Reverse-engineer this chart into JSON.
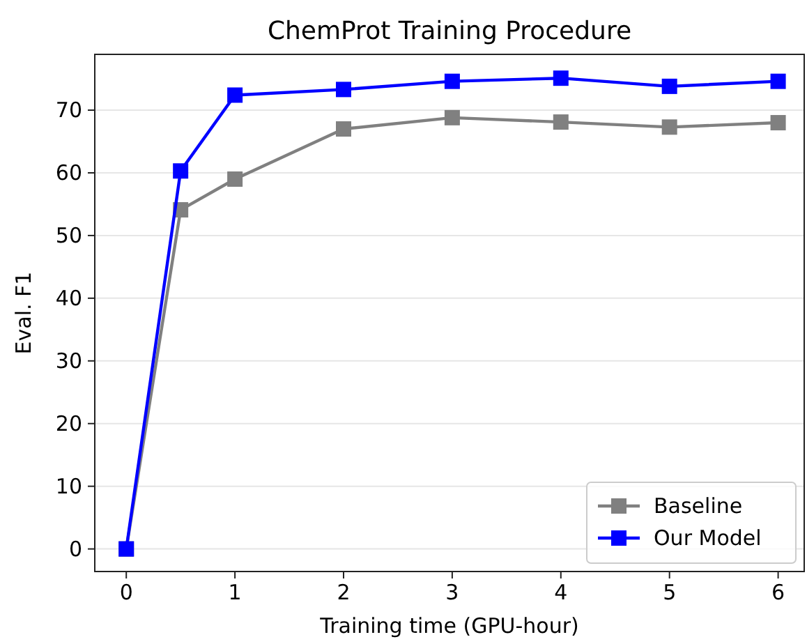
{
  "chart_data": {
    "type": "line",
    "title": "ChemProt Training Procedure",
    "xlabel": "Training time (GPU-hour)",
    "ylabel": "Eval. F1",
    "x": [
      0,
      0.5,
      1,
      2,
      3,
      4,
      5,
      6
    ],
    "series": [
      {
        "name": "Baseline",
        "color": "#808080",
        "values": [
          0,
          54.1,
          59,
          67,
          68.8,
          68.1,
          67.3,
          68
        ]
      },
      {
        "name": "Our Model",
        "color": "#0000ff",
        "values": [
          0,
          60.3,
          72.4,
          73.3,
          74.6,
          75.1,
          73.8,
          74.6
        ]
      }
    ],
    "xlim": [
      -0.29,
      6.24
    ],
    "ylim": [
      -3.6,
      78.9
    ],
    "xticks": [
      0,
      1,
      2,
      3,
      4,
      5,
      6
    ],
    "yticks": [
      0,
      10,
      20,
      30,
      40,
      50,
      60,
      70
    ],
    "grid": "y",
    "legend": "bottom right",
    "marker": "square",
    "line_style": "solid"
  }
}
